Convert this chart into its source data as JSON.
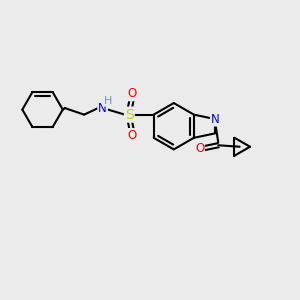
{
  "background_color": "#ebebeb",
  "bond_color": "#000000",
  "atom_colors": {
    "N": "#0000ff",
    "O": "#ff0000",
    "S": "#cccc00",
    "H": "#6699aa",
    "C": "#000000"
  },
  "line_width": 1.5,
  "font_size": 8.5
}
